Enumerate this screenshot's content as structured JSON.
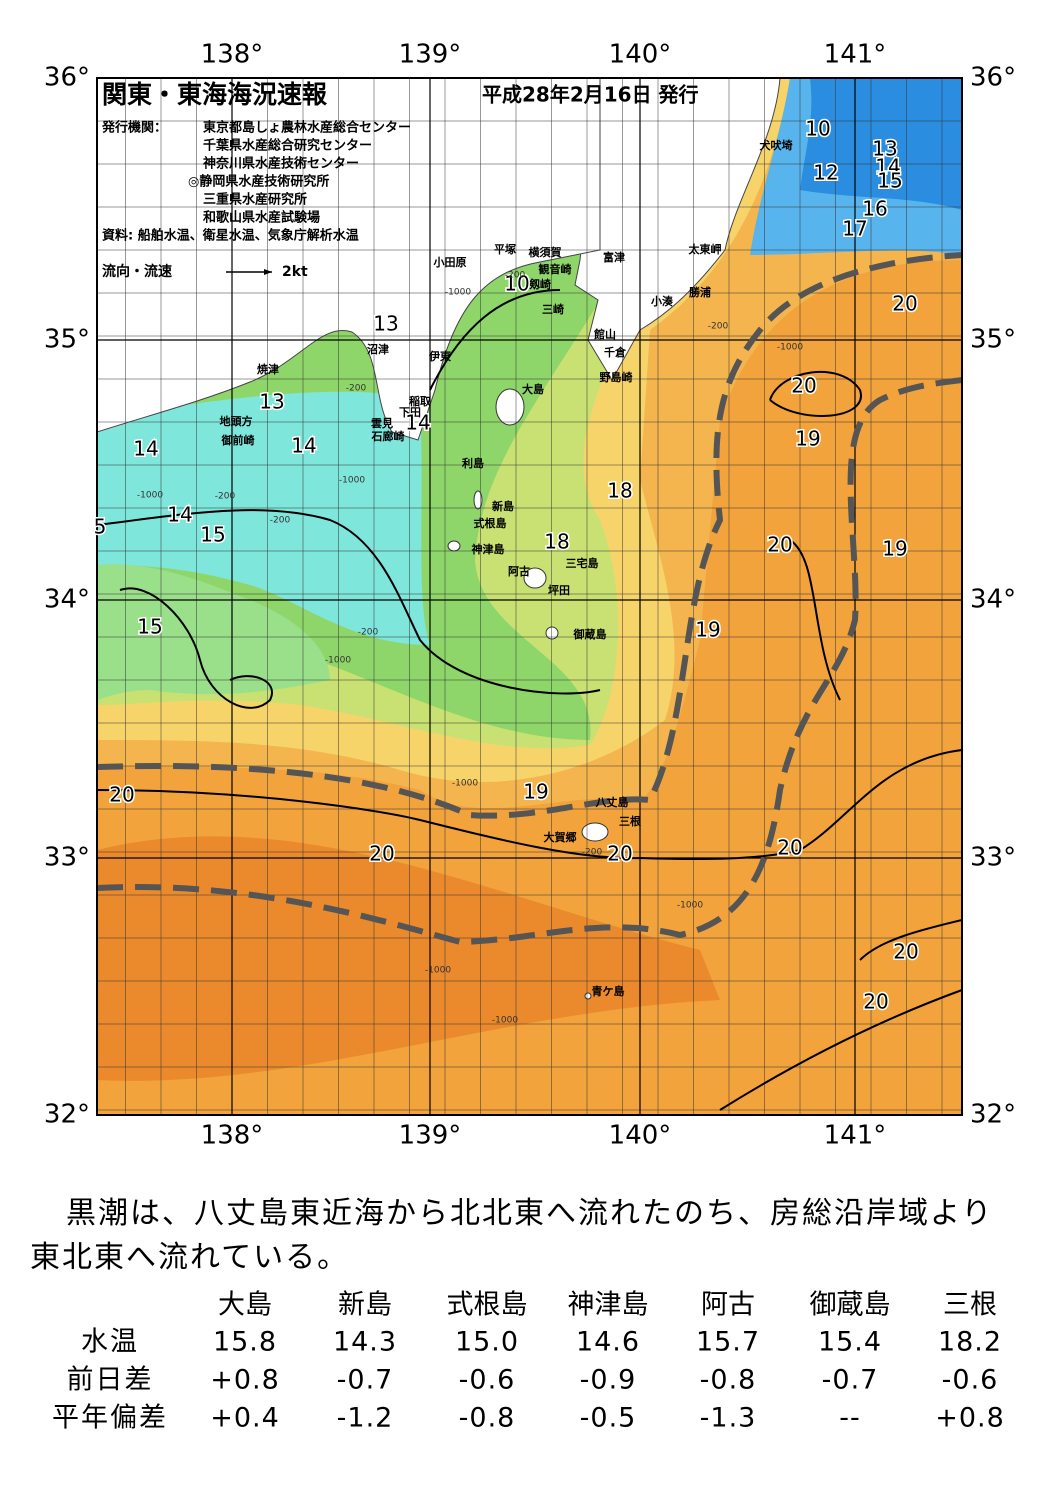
{
  "map": {
    "title": "関東・東海海況速報",
    "date": "平成28年2月16日 発行",
    "issuer_label": "発行機関：",
    "issuers": [
      "東京都島しょ農林水産総合センター",
      "千葉県水産総合研究センター",
      "神奈川県水産技術センター",
      "◎静岡県水産技術研究所",
      "三重県水産研究所",
      "和歌山県水産試験場"
    ],
    "source": "資料: 船舶水温、衛星水温、気象庁解析水温",
    "legend": "流向・流速",
    "legend_scale": "2kt",
    "lat_labels": [
      "36°",
      "35°",
      "34°",
      "33°",
      "32°"
    ],
    "lon_labels": [
      "138°",
      "139°",
      "140°",
      "141°"
    ],
    "places": [
      "犬吠埼",
      "太東岬",
      "勝浦",
      "小湊",
      "富津",
      "館山",
      "千倉",
      "野島崎",
      "平塚",
      "横須賀",
      "観音崎",
      "剱崎",
      "三崎",
      "小田原",
      "沼津",
      "伊東",
      "焼津",
      "稲取",
      "下田",
      "雲見",
      "石廊崎",
      "地頭方",
      "御前崎",
      "大島",
      "利島",
      "新島",
      "式根島",
      "神津島",
      "三宅島",
      "阿古",
      "坪田",
      "御蔵島",
      "八丈島",
      "三根",
      "大賀郷",
      "青ケ島"
    ],
    "isotherm_labels": [
      "10",
      "12",
      "13",
      "14",
      "15",
      "16",
      "17",
      "20",
      "20",
      "19",
      "18",
      "18",
      "20",
      "19",
      "19",
      "13",
      "13",
      "14",
      "14",
      "14",
      "14",
      "15",
      "15",
      "5",
      "19",
      "20",
      "20",
      "20",
      "20",
      "20",
      "20",
      "10"
    ],
    "depth_labels": [
      "-200",
      "-200",
      "-1000",
      "-200",
      "-1000",
      "-200",
      "-1000",
      "-200",
      "-1000",
      "-1000",
      "-200",
      "-1000",
      "-1000",
      "-1000",
      "-200",
      "-1000"
    ]
  },
  "summary": "黒潮は、八丈島東近海から北北東へ流れたのち、房総沿岸域より東北東へ流れている。",
  "table": {
    "header": [
      "大島",
      "新島",
      "式根島",
      "神津島",
      "阿古",
      "御蔵島",
      "三根"
    ],
    "rows": [
      [
        "水温",
        "15.8",
        "14.3",
        "15.0",
        "14.6",
        "15.7",
        "15.4",
        "18.2"
      ],
      [
        "前日差",
        "+0.8",
        "-0.7",
        "-0.6",
        "-0.9",
        "-0.8",
        "-0.7",
        "-0.6"
      ],
      [
        "平年偏差",
        "+0.4",
        "-1.2",
        "-0.8",
        "-0.5",
        "-1.3",
        "--",
        "+0.8"
      ]
    ]
  }
}
